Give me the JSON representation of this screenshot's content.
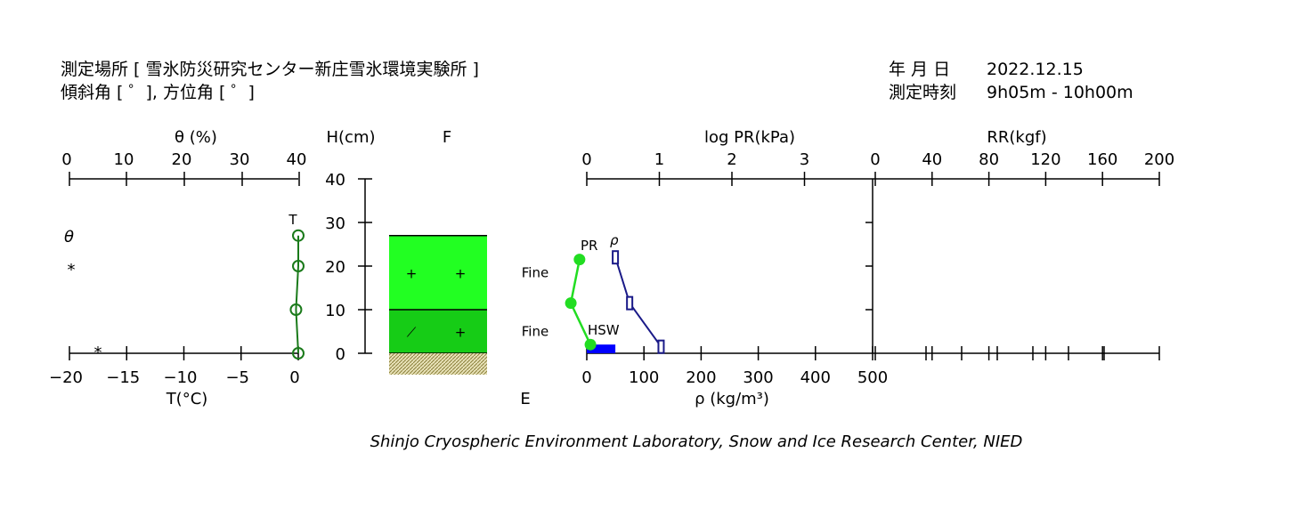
{
  "header": {
    "location": "測定場所 [ 雪氷防災研究センター新庄雪氷環境実験所 ]",
    "slope": "傾斜角 [ ゜], 方位角 [ ゜]",
    "date_label": "年 月 日",
    "date_value": "2022.12.15",
    "time_label": "測定時刻",
    "time_value": "9h05m - 10h00m"
  },
  "footer": {
    "credit": "Shinjo Cryospheric Environment Laboratory, Snow and Ice Research Center, NIED"
  },
  "colors": {
    "temperature": "#1a7a1a",
    "pr": "#22dd22",
    "density": "#1a1a88",
    "hsw": "#0000ff",
    "layer_upper": "#22ff22",
    "layer_lower": "#16cc16",
    "ground": "#b8ad6a"
  },
  "chart_data": [
    {
      "type": "line",
      "name": "temperature-profile",
      "top_axis_label": "θ (%)",
      "top_ticks": [
        "0",
        "10",
        "20",
        "30",
        "40"
      ],
      "bottom_axis_label": "T(°C)",
      "bottom_ticks": [
        "−20",
        "−15",
        "−10",
        "−5",
        "0"
      ],
      "xlim": [
        -20,
        0
      ],
      "series_label": "T",
      "theta_label": "θ",
      "theta_marks": [
        {
          "y": 20,
          "symbol": "*"
        },
        {
          "y": 1,
          "symbol": "*"
        }
      ],
      "points": [
        {
          "h": 27,
          "t": 0.0
        },
        {
          "h": 20,
          "t": 0.0
        },
        {
          "h": 10,
          "t": -0.2
        },
        {
          "h": 0,
          "t": 0.0
        }
      ]
    },
    {
      "type": "table",
      "name": "snow-layers",
      "height_label": "H(cm)",
      "height_ticks": [
        "0",
        "10",
        "20",
        "30",
        "40"
      ],
      "ylim": [
        0,
        40
      ],
      "F_label": "F",
      "E_label": "E",
      "layers": [
        {
          "bottom": 10,
          "top": 27,
          "F": "Fine",
          "grains": [
            "+",
            "+"
          ]
        },
        {
          "bottom": 0,
          "top": 10,
          "F": "Fine",
          "grains": [
            "⟋",
            "+"
          ]
        }
      ]
    },
    {
      "type": "line",
      "name": "pr-density-profile",
      "top_axis_label": "log PR(kPa)",
      "top_ticks": [
        "0",
        "1",
        "2",
        "3"
      ],
      "bottom_axis_label": "ρ (kg/m³)",
      "bottom_ticks": [
        "0",
        "100",
        "200",
        "300",
        "400",
        "500"
      ],
      "pr_label": "PR",
      "rho_label": "ρ",
      "hsw_label": "HSW",
      "pr_points": [
        {
          "h": 21.5,
          "log_pr": -0.1
        },
        {
          "h": 11.5,
          "log_pr": -0.22
        },
        {
          "h": 2,
          "log_pr": 0.05
        }
      ],
      "density_points": [
        {
          "h": 22,
          "rho": 50
        },
        {
          "h": 11.5,
          "rho": 75
        },
        {
          "h": 1.5,
          "rho": 130
        }
      ],
      "hsw": {
        "rho_from": 0,
        "rho_to": 50,
        "h_from": 0,
        "h_to": 2
      }
    },
    {
      "type": "line",
      "name": "ram-resistance",
      "top_axis_label": "RR(kgf)",
      "top_ticks": [
        "0",
        "40",
        "80",
        "120",
        "160",
        "200"
      ],
      "xlim": [
        0,
        200
      ],
      "values": []
    }
  ]
}
